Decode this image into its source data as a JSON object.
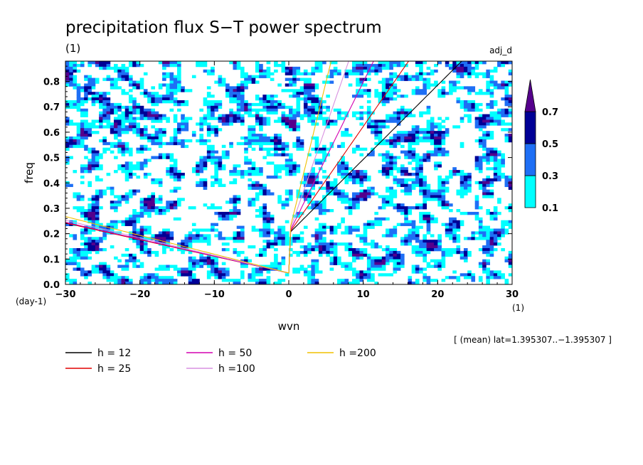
{
  "chart_data": {
    "type": "heatmap",
    "title": "precipitation flux S−T power spectrum",
    "units_label": "(1)",
    "top_right_label": "adj_d",
    "xlabel": "wvn",
    "ylabel": "freq",
    "x_unit_label": "(1)",
    "y_unit_label": "(day-1)",
    "xlim": [
      -30,
      30
    ],
    "ylim": [
      0,
      0.88
    ],
    "x_ticks": [
      -30,
      -20,
      -10,
      0,
      10,
      20,
      30
    ],
    "x_tick_labels": [
      "−30",
      "−20",
      "−10",
      "0",
      "10",
      "20",
      "30"
    ],
    "y_ticks": [
      0.0,
      0.1,
      0.2,
      0.3,
      0.4,
      0.5,
      0.6,
      0.7,
      0.8
    ],
    "y_tick_labels": [
      "0.0",
      "0.1",
      "0.2",
      "0.3",
      "0.4",
      "0.5",
      "0.6",
      "0.7",
      "0.8"
    ],
    "color_levels": [
      0.1,
      0.3,
      0.5,
      0.7
    ],
    "color_level_labels": [
      "0.1",
      "0.3",
      "0.5",
      "0.7"
    ],
    "colors": [
      "#00ffff",
      "#1e6ff5",
      "#000096",
      "#55008c"
    ],
    "field_note": "contour field of power; values shown per colorbar levels",
    "dispersion_curves": [
      {
        "label": "h = 12",
        "h": 12,
        "color": "#000000"
      },
      {
        "label": "h = 25",
        "h": 25,
        "color": "#e00000"
      },
      {
        "label": "h = 50",
        "h": 50,
        "color": "#d400b0"
      },
      {
        "label": "h =100",
        "h": 100,
        "color": "#d890e0"
      },
      {
        "label": "h =200",
        "h": 200,
        "color": "#f0c000"
      }
    ],
    "footnote": "[ (mean) lat=1.395307..−1.395307 ]",
    "grid": false
  }
}
